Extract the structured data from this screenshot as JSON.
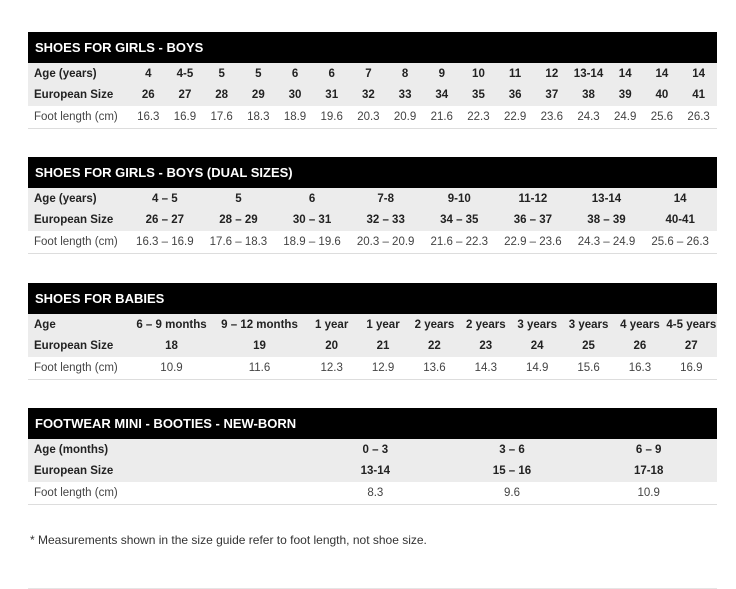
{
  "tables": [
    {
      "title": "SHOES FOR GIRLS - BOYS",
      "rows": [
        {
          "label": "Age (years)",
          "values": [
            "4",
            "4-5",
            "5",
            "5",
            "6",
            "6",
            "7",
            "8",
            "9",
            "10",
            "11",
            "12",
            "13-14",
            "14",
            "14",
            "14"
          ]
        },
        {
          "label": "European Size",
          "values": [
            "26",
            "27",
            "28",
            "29",
            "30",
            "31",
            "32",
            "33",
            "34",
            "35",
            "36",
            "37",
            "38",
            "39",
            "40",
            "41"
          ]
        },
        {
          "label": "Foot length (cm)",
          "values": [
            "16.3",
            "16.9",
            "17.6",
            "18.3",
            "18.9",
            "19.6",
            "20.3",
            "20.9",
            "21.6",
            "22.3",
            "22.9",
            "23.6",
            "24.3",
            "24.9",
            "25.6",
            "26.3"
          ]
        }
      ]
    },
    {
      "title": "SHOES FOR GIRLS - BOYS (DUAL SIZES)",
      "rows": [
        {
          "label": "Age (years)",
          "values": [
            "4 – 5",
            "5",
            "6",
            "7-8",
            "9-10",
            "11-12",
            "13-14",
            "14"
          ]
        },
        {
          "label": "European Size",
          "values": [
            "26 – 27",
            "28 – 29",
            "30 – 31",
            "32 – 33",
            "34 – 35",
            "36 – 37",
            "38 – 39",
            "40-41"
          ]
        },
        {
          "label": "Foot length (cm)",
          "values": [
            "16.3 – 16.9",
            "17.6 – 18.3",
            "18.9 – 19.6",
            "20.3 – 20.9",
            "21.6 – 22.3",
            "22.9 – 23.6",
            "24.3 – 24.9",
            "25.6 – 26.3"
          ]
        }
      ]
    },
    {
      "title": "SHOES FOR BABIES",
      "rows": [
        {
          "label": "Age",
          "values": [
            "6 – 9 months",
            "9 – 12 months",
            "1 year",
            "1 year",
            "2 years",
            "2 years",
            "3 years",
            "3 years",
            "4 years",
            "4-5 years"
          ]
        },
        {
          "label": "European Size",
          "values": [
            "18",
            "19",
            "20",
            "21",
            "22",
            "23",
            "24",
            "25",
            "26",
            "27"
          ]
        },
        {
          "label": "Foot length (cm)",
          "values": [
            "10.9",
            "11.6",
            "12.3",
            "12.9",
            "13.6",
            "14.3",
            "14.9",
            "15.6",
            "16.3",
            "16.9"
          ]
        }
      ]
    },
    {
      "title": "FOOTWEAR MINI - BOOTIES - NEW-BORN",
      "rows": [
        {
          "label": "Age (months)",
          "values": [
            "0 – 3",
            "3 – 6",
            "6 – 9"
          ]
        },
        {
          "label": "European Size",
          "values": [
            "13-14",
            "15 – 16",
            "17-18"
          ]
        },
        {
          "label": "Foot length (cm)",
          "values": [
            "8.3",
            "9.6",
            "10.9"
          ]
        }
      ]
    }
  ],
  "footnote": "* Measurements shown in the size guide refer to foot length, not shoe size."
}
